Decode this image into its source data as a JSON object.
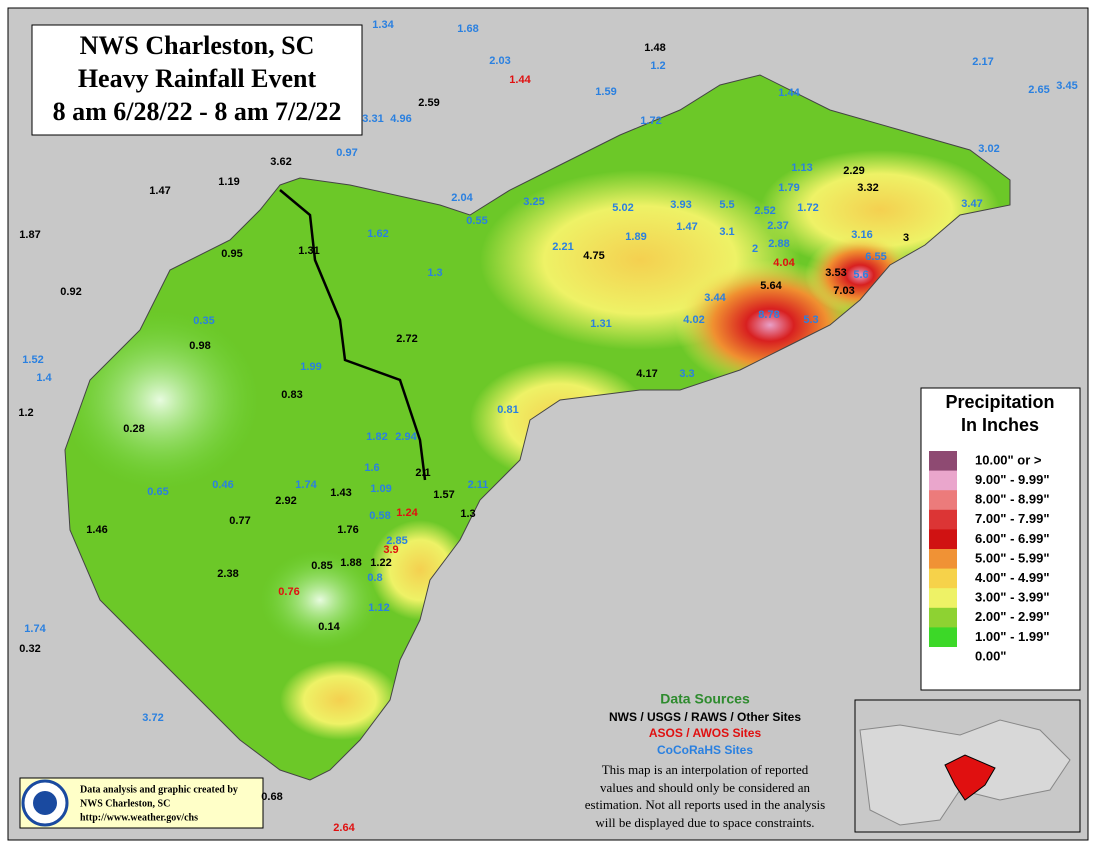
{
  "title": [
    "NWS Charleston, SC",
    "Heavy Rainfall Event",
    "8 am 6/28/22 - 8 am 7/2/22"
  ],
  "legend": {
    "title": [
      "Precipitation",
      "In Inches"
    ],
    "items": [
      {
        "label": "10.00\" or >",
        "color": "#8e4a72"
      },
      {
        "label": "9.00\" - 9.99\"",
        "color": "#eaa6cc"
      },
      {
        "label": "8.00\" - 8.99\"",
        "color": "#ec7b7b"
      },
      {
        "label": "7.00\" - 7.99\"",
        "color": "#dc3535"
      },
      {
        "label": "6.00\" - 6.99\"",
        "color": "#d01212"
      },
      {
        "label": "5.00\" - 5.99\"",
        "color": "#f09235"
      },
      {
        "label": "4.00\" - 4.99\"",
        "color": "#f6d24a"
      },
      {
        "label": "3.00\" - 3.99\"",
        "color": "#eef266"
      },
      {
        "label": "2.00\" - 2.99\"",
        "color": "#8ed232"
      },
      {
        "label": "1.00\" - 1.99\"",
        "color": "#3cd828"
      },
      {
        "label": "0.00\"",
        "color": "#ffffff"
      }
    ]
  },
  "sources": {
    "heading": "Data Sources",
    "nws": "NWS / USGS / RAWS / Other Sites",
    "asos": "ASOS / AWOS Sites",
    "cocorahs": "CoCoRaHS Sites",
    "note": [
      "This map is an interpolation of reported",
      "values and should only be considered an",
      "estimation. Not all reports used in the analysis",
      "will be displayed due to space constraints."
    ]
  },
  "credits": [
    "Data analysis and graphic created by",
    "NWS Charleston, SC",
    "http://www.weather.gov/chs"
  ],
  "stations": {
    "cocorahs": [
      "1.34",
      "1.68",
      "2.03",
      "1.2",
      "1.59",
      "1.72",
      "3.31",
      "4.96",
      "0.97",
      "2.17",
      "2.65",
      "3.45",
      "1.44",
      "3.02",
      "1.13",
      "1.79",
      "2.52",
      "1.72",
      "5.5",
      "3.93",
      "3.25",
      "5.02",
      "2.04",
      "0.55",
      "1.62",
      "1.47",
      "3.1",
      "2.37",
      "2.88",
      "2",
      "1.89",
      "2.21",
      "3.47",
      "3.16",
      "6.55",
      "5.6",
      "1.3",
      "0.35",
      "3.44",
      "4.02",
      "8.78",
      "5.3",
      "1.31",
      "1.52",
      "1.4",
      "1.99",
      "3.3",
      "0.81",
      "1.82",
      "2.94",
      "1.6",
      "0.65",
      "0.46",
      "1.74",
      "1.09",
      "2.11",
      "0.58",
      "2.85",
      "0.8",
      "1.12",
      "1.74",
      "3.72"
    ],
    "nws": [
      "1.48",
      "2.59",
      "3.62",
      "1.47",
      "1.19",
      "1.87",
      "0.95",
      "1.31",
      "0.92",
      "2.29",
      "3.32",
      "4.75",
      "3",
      "3.53",
      "7.03",
      "5.64",
      "2.72",
      "0.98",
      "0.83",
      "4.17",
      "1.2",
      "0.28",
      "2.1",
      "2.92",
      "1.43",
      "1.57",
      "0.77",
      "1.76",
      "1.3",
      "1.46",
      "0.85",
      "1.88",
      "1.22",
      "2.38",
      "0.14",
      "0.32",
      "0.68"
    ],
    "asos": [
      "1.44",
      "4.04",
      "1.24",
      "3.9",
      "0.76",
      "2.64"
    ]
  }
}
